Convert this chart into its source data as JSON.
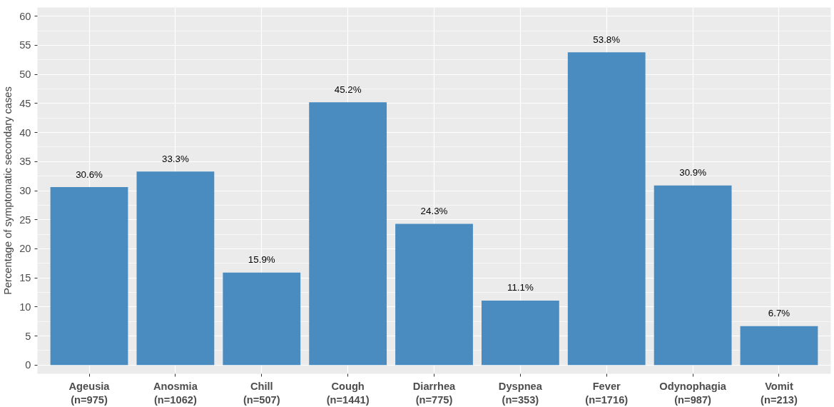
{
  "chart_data": {
    "type": "bar",
    "ylabel": "Percentage of symptomatic secondary cases",
    "categories": [
      "Ageusia\n(n=975)",
      "Anosmia\n(n=1062)",
      "Chill\n(n=507)",
      "Cough\n(n=1441)",
      "Diarrhea\n(n=775)",
      "Dyspnea\n(n=353)",
      "Fever\n(n=1716)",
      "Odynophagia\n(n=987)",
      "Vomit\n(n=213)"
    ],
    "values": [
      30.6,
      33.3,
      15.9,
      45.2,
      24.3,
      11.1,
      53.8,
      30.9,
      6.7
    ],
    "value_labels": [
      "30.6%",
      "33.3%",
      "15.9%",
      "45.2%",
      "24.3%",
      "11.1%",
      "53.8%",
      "30.9%",
      "6.7%"
    ],
    "color": "#4a8bc0",
    "ylim": [
      -1.5,
      61.5
    ],
    "yticks": [
      0,
      5,
      10,
      15,
      20,
      25,
      30,
      35,
      40,
      45,
      50,
      55,
      60
    ],
    "grid": true
  }
}
